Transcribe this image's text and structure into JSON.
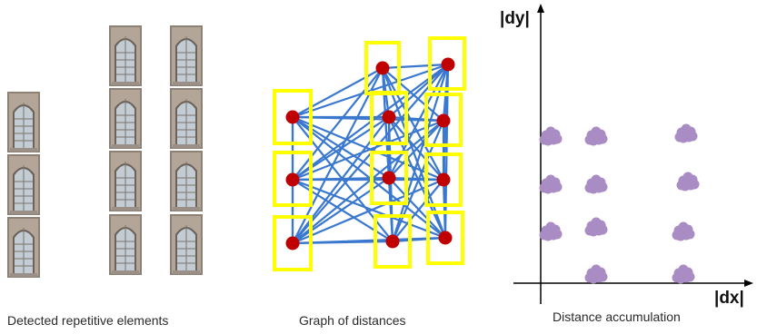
{
  "captions": {
    "detected": "Detected repetitive elements",
    "graph": "Graph of distances",
    "accumulation": "Distance accumulation"
  },
  "axes": {
    "x_label": "|dx|",
    "y_label": "|dy|"
  },
  "colors": {
    "window_frame": "#a89a8a",
    "window_glass": "#b9c2c8",
    "box": "#ffff00",
    "node": "#c00000",
    "edge": "#3a78d0",
    "blob": "#a98cc4",
    "axis": "#000000"
  }
}
